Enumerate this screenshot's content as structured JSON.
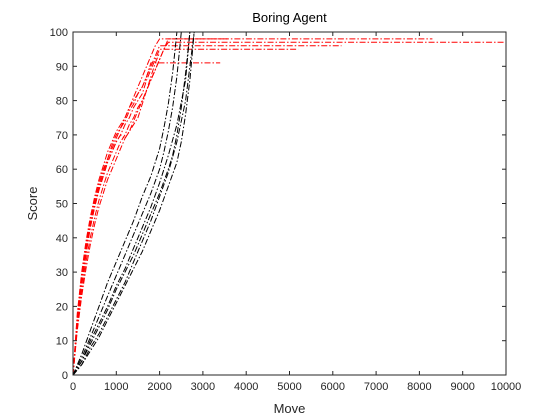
{
  "chart_data": {
    "type": "line",
    "title": "Boring Agent",
    "xlabel": "Move",
    "ylabel": "Score",
    "xlim": [
      0,
      10000
    ],
    "ylim": [
      0,
      100
    ],
    "xticks": [
      0,
      1000,
      2000,
      3000,
      4000,
      5000,
      6000,
      7000,
      8000,
      9000,
      10000
    ],
    "yticks": [
      0,
      10,
      20,
      30,
      40,
      50,
      60,
      70,
      80,
      90,
      100
    ],
    "grid": false,
    "line_style": "dash-dot",
    "colors": {
      "red_runs": "#ff0000",
      "black_runs": "#000000",
      "axis": "#262626"
    },
    "series": [
      {
        "color": "red",
        "x": [
          0,
          100,
          200,
          300,
          400,
          500,
          600,
          700,
          800,
          900,
          1000,
          1100,
          1200,
          1300,
          1400,
          1500,
          1600,
          1700,
          1800,
          3400
        ],
        "y": [
          0,
          18,
          30,
          39,
          46,
          52,
          57,
          61,
          65,
          68,
          71,
          73,
          75,
          78,
          80,
          82,
          84,
          87,
          91,
          91
        ]
      },
      {
        "color": "red",
        "x": [
          0,
          100,
          200,
          300,
          400,
          500,
          600,
          700,
          800,
          900,
          1000,
          1100,
          1200,
          1300,
          1400,
          1500,
          1600,
          1700,
          1800,
          1900,
          2000,
          5200
        ],
        "y": [
          0,
          15,
          26,
          35,
          43,
          49,
          54,
          58,
          62,
          65,
          68,
          70,
          73,
          75,
          78,
          80,
          82,
          86,
          89,
          92,
          95,
          95
        ]
      },
      {
        "color": "red",
        "x": [
          0,
          100,
          200,
          300,
          400,
          500,
          600,
          700,
          800,
          900,
          1000,
          1100,
          1200,
          1300,
          1400,
          1500,
          1600,
          1700,
          1800,
          1900,
          2000,
          2100,
          2200,
          3600
        ],
        "y": [
          0,
          14,
          24,
          33,
          40,
          46,
          51,
          55,
          59,
          62,
          65,
          68,
          70,
          73,
          75,
          78,
          80,
          83,
          86,
          89,
          92,
          95,
          98,
          98
        ]
      },
      {
        "color": "red",
        "x": [
          0,
          100,
          200,
          300,
          400,
          500,
          600,
          700,
          800,
          900,
          1000,
          1100,
          1200,
          1300,
          1400,
          1500,
          1600,
          1700,
          1800,
          1900,
          2000,
          6200
        ],
        "y": [
          0,
          16,
          28,
          37,
          44,
          50,
          55,
          59,
          63,
          66,
          69,
          72,
          74,
          77,
          79,
          82,
          84,
          87,
          90,
          93,
          96,
          96
        ]
      },
      {
        "color": "red",
        "x": [
          0,
          100,
          200,
          300,
          400,
          500,
          600,
          700,
          800,
          900,
          1000,
          1100,
          1200,
          1300,
          1400,
          1500,
          1600,
          1700,
          1800,
          1900,
          2000,
          2100,
          2200,
          10000
        ],
        "y": [
          0,
          13,
          23,
          31,
          38,
          44,
          49,
          53,
          57,
          60,
          63,
          66,
          69,
          71,
          74,
          77,
          80,
          83,
          86,
          89,
          92,
          95,
          97,
          97
        ]
      },
      {
        "color": "red",
        "x": [
          0,
          100,
          200,
          300,
          400,
          500,
          600,
          700,
          800,
          900,
          1000,
          1100,
          1200,
          1300,
          1400,
          1500,
          1600,
          1700,
          1800,
          1900,
          2000,
          8300
        ],
        "y": [
          0,
          17,
          29,
          38,
          45,
          51,
          56,
          60,
          63,
          67,
          70,
          72,
          75,
          78,
          81,
          84,
          87,
          90,
          93,
          96,
          98,
          98
        ]
      },
      {
        "color": "red",
        "x": [
          0,
          100,
          200,
          300,
          400,
          500,
          600,
          700,
          800,
          900,
          1000,
          1100,
          1200,
          1300,
          1400,
          1500,
          1600,
          1700,
          1800,
          1900,
          2000
        ],
        "y": [
          0,
          15,
          27,
          36,
          43,
          49,
          54,
          58,
          62,
          65,
          68,
          70,
          69,
          71,
          73,
          75,
          79,
          83,
          87,
          91,
          94
        ]
      },
      {
        "color": "black",
        "x": [
          0,
          200,
          400,
          600,
          800,
          1000,
          1200,
          1400,
          1600,
          1800,
          2000,
          2100,
          2200,
          2300,
          2400
        ],
        "y": [
          0,
          6,
          13,
          20,
          27,
          33,
          39,
          45,
          52,
          58,
          66,
          72,
          79,
          88,
          100
        ]
      },
      {
        "color": "black",
        "x": [
          0,
          200,
          400,
          600,
          800,
          1000,
          1200,
          1400,
          1600,
          1800,
          2000,
          2100,
          2200,
          2300,
          2400,
          2500
        ],
        "y": [
          0,
          5,
          11,
          17,
          23,
          29,
          35,
          41,
          47,
          53,
          60,
          65,
          71,
          78,
          87,
          100
        ]
      },
      {
        "color": "black",
        "x": [
          0,
          200,
          400,
          600,
          800,
          1000,
          1200,
          1400,
          1600,
          1800,
          2000,
          2200,
          2300,
          2400,
          2500,
          2600,
          2700
        ],
        "y": [
          0,
          4,
          9,
          14,
          19,
          25,
          30,
          35,
          41,
          47,
          53,
          60,
          64,
          70,
          78,
          88,
          100
        ]
      },
      {
        "color": "black",
        "x": [
          0,
          200,
          400,
          600,
          800,
          1000,
          1200,
          1400,
          1600,
          1800,
          2000,
          2200,
          2400,
          2500,
          2600,
          2700,
          2800
        ],
        "y": [
          0,
          3,
          7,
          11,
          16,
          21,
          26,
          31,
          36,
          42,
          48,
          55,
          62,
          68,
          76,
          86,
          100
        ]
      },
      {
        "color": "black",
        "x": [
          0,
          200,
          400,
          600,
          800,
          1000,
          1200,
          1400,
          1600,
          1800,
          2000,
          2200,
          2400,
          2600,
          2800
        ],
        "y": [
          0,
          3,
          8,
          12,
          17,
          22,
          27,
          33,
          39,
          45,
          52,
          59,
          68,
          80,
          100
        ]
      },
      {
        "color": "black",
        "x": [
          0,
          200,
          400,
          600,
          800,
          1000,
          1200,
          1400,
          1600,
          1800,
          2000,
          2200,
          2400,
          2600,
          2700
        ],
        "y": [
          0,
          4,
          10,
          15,
          20,
          26,
          31,
          37,
          43,
          49,
          56,
          64,
          73,
          86,
          100
        ]
      }
    ]
  }
}
